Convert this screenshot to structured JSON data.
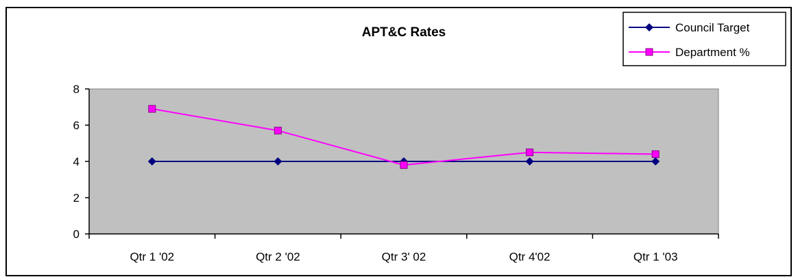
{
  "chart_data": {
    "type": "line",
    "title": "APT&C Rates",
    "xlabel": "",
    "ylabel": "",
    "categories": [
      "Qtr 1 '02",
      "Qtr 2 '02",
      "Qtr 3' 02",
      "Qtr 4'02",
      "Qtr 1 '03"
    ],
    "ylim": [
      0,
      8
    ],
    "yticks": [
      0,
      2,
      4,
      6,
      8
    ],
    "grid": false,
    "plot_background": "#C0C0C0",
    "legend_position": "top-right",
    "series": [
      {
        "name": "Council Target",
        "values": [
          4,
          4,
          4,
          4,
          4
        ],
        "color": "#000080",
        "marker": "diamond"
      },
      {
        "name": "Department %",
        "values": [
          6.9,
          5.7,
          3.8,
          4.5,
          4.4
        ],
        "color": "#FF00FF",
        "marker": "square"
      }
    ]
  }
}
